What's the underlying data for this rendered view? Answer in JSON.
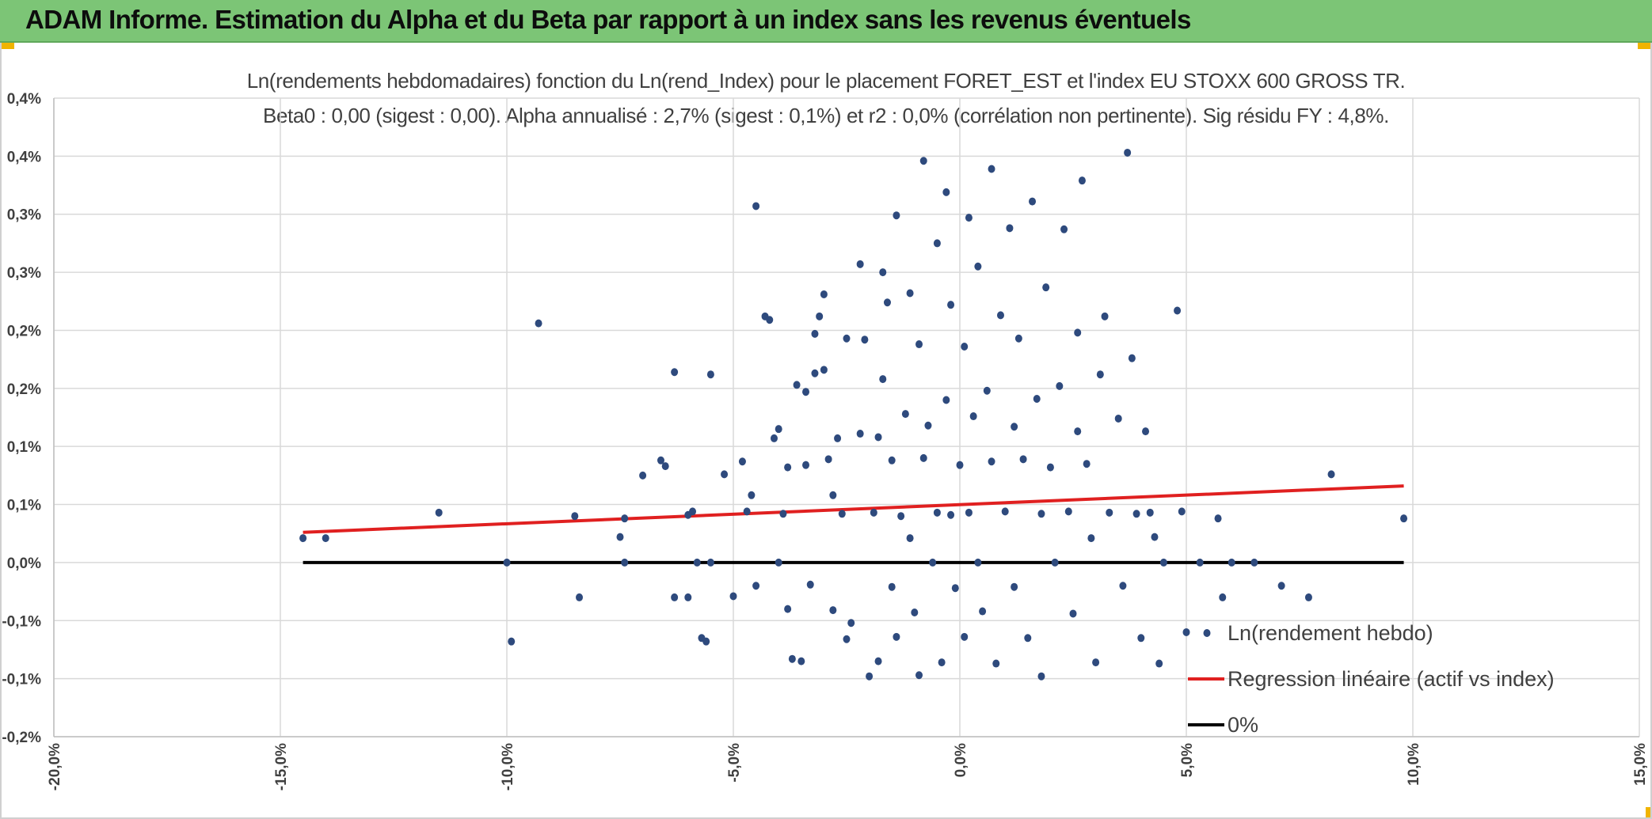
{
  "header": {
    "title": "ADAM Informe. Estimation du Alpha et du Beta par rapport à un index sans les revenus éventuels",
    "accent_color": "#7cc576",
    "corner_color": "#f0b400"
  },
  "chart_data": {
    "type": "scatter",
    "title_line1": "Ln(rendements hebdomadaires) fonction du Ln(rend_Index) pour le placement FORET_EST et l'index EU STOXX 600 GROSS TR.",
    "title_line2": "Beta0 : 0,00 (sigest : 0,00). Alpha annualisé : 2,7% (sigest : 0,1%) et r2 : 0,0% (corrélation non pertinente). Sig résidu FY : 4,8%.",
    "xlim": [
      -0.2,
      0.15
    ],
    "ylim": [
      -0.0015,
      0.004
    ],
    "x_ticks": [
      -0.2,
      -0.15,
      -0.1,
      -0.05,
      0.0,
      0.05,
      0.1,
      0.15
    ],
    "x_tick_labels": [
      "-20,0%",
      "-15,0%",
      "-10,0%",
      "-5,0%",
      "0,0%",
      "5,0%",
      "10,0%",
      "15,0%"
    ],
    "y_ticks": [
      -0.0015,
      -0.001,
      -0.0005,
      0.0,
      0.0005,
      0.001,
      0.0015,
      0.002,
      0.0025,
      0.003,
      0.0035,
      0.004
    ],
    "y_tick_labels": [
      "-0,2%",
      "-0,1%",
      "-0,1%",
      "0,0%",
      "0,1%",
      "0,1%",
      "0,2%",
      "0,2%",
      "0,3%",
      "0,3%",
      "0,4%",
      "0,4%"
    ],
    "grid": true,
    "legend_position": "bottom-right",
    "series": [
      {
        "name": "Ln(rendement hebdo)",
        "kind": "scatter",
        "color": "#2e4a7d",
        "points": [
          [
            -0.145,
            0.00021
          ],
          [
            -0.14,
            0.00021
          ],
          [
            -0.115,
            0.00043
          ],
          [
            -0.1,
            0.0
          ],
          [
            -0.099,
            -0.00068
          ],
          [
            -0.093,
            0.00206
          ],
          [
            -0.085,
            0.0004
          ],
          [
            -0.084,
            -0.0003
          ],
          [
            -0.075,
            0.00022
          ],
          [
            -0.074,
            0.00038
          ],
          [
            -0.074,
            0.0
          ],
          [
            -0.07,
            0.00075
          ],
          [
            -0.066,
            0.00088
          ],
          [
            -0.065,
            0.00083
          ],
          [
            -0.063,
            0.00164
          ],
          [
            -0.063,
            -0.0003
          ],
          [
            -0.06,
            0.00041
          ],
          [
            -0.06,
            -0.0003
          ],
          [
            -0.059,
            0.00044
          ],
          [
            -0.058,
            0.0
          ],
          [
            -0.057,
            -0.00065
          ],
          [
            -0.056,
            -0.00068
          ],
          [
            -0.055,
            0.00162
          ],
          [
            -0.055,
            0.0
          ],
          [
            -0.052,
            0.00076
          ],
          [
            -0.05,
            -0.00029
          ],
          [
            -0.048,
            0.00087
          ],
          [
            -0.047,
            0.00044
          ],
          [
            -0.046,
            0.00058
          ],
          [
            -0.045,
            0.00307
          ],
          [
            -0.045,
            -0.0002
          ],
          [
            -0.043,
            0.00212
          ],
          [
            -0.042,
            0.00209
          ],
          [
            -0.041,
            0.00107
          ],
          [
            -0.04,
            0.00115
          ],
          [
            -0.04,
            0.0
          ],
          [
            -0.039,
            0.00042
          ],
          [
            -0.038,
            0.00082
          ],
          [
            -0.038,
            -0.0004
          ],
          [
            -0.037,
            -0.00083
          ],
          [
            -0.036,
            0.00153
          ],
          [
            -0.035,
            -0.00085
          ],
          [
            -0.034,
            0.00147
          ],
          [
            -0.034,
            0.00084
          ],
          [
            -0.033,
            -0.00019
          ],
          [
            -0.032,
            0.00197
          ],
          [
            -0.032,
            0.00163
          ],
          [
            -0.031,
            0.00212
          ],
          [
            -0.03,
            0.00231
          ],
          [
            -0.03,
            0.00166
          ],
          [
            -0.029,
            0.00089
          ],
          [
            -0.028,
            0.00058
          ],
          [
            -0.028,
            -0.00041
          ],
          [
            -0.027,
            0.00107
          ],
          [
            -0.026,
            0.00042
          ],
          [
            -0.025,
            0.00193
          ],
          [
            -0.025,
            -0.00066
          ],
          [
            -0.024,
            -0.00052
          ],
          [
            -0.022,
            0.00257
          ],
          [
            -0.022,
            0.00111
          ],
          [
            -0.021,
            0.00192
          ],
          [
            -0.02,
            -0.00098
          ],
          [
            -0.019,
            0.00043
          ],
          [
            -0.018,
            0.00108
          ],
          [
            -0.018,
            -0.00085
          ],
          [
            -0.017,
            0.0025
          ],
          [
            -0.017,
            0.00158
          ],
          [
            -0.016,
            0.00224
          ],
          [
            -0.015,
            0.00088
          ],
          [
            -0.015,
            -0.00021
          ],
          [
            -0.014,
            0.00299
          ],
          [
            -0.014,
            -0.00064
          ],
          [
            -0.013,
            0.0004
          ],
          [
            -0.012,
            0.00128
          ],
          [
            -0.011,
            0.00232
          ],
          [
            -0.011,
            0.00021
          ],
          [
            -0.01,
            -0.00043
          ],
          [
            -0.009,
            0.00188
          ],
          [
            -0.009,
            -0.00097
          ],
          [
            -0.008,
            0.00346
          ],
          [
            -0.008,
            0.0009
          ],
          [
            -0.007,
            0.00118
          ],
          [
            -0.006,
            0.0
          ],
          [
            -0.005,
            0.00275
          ],
          [
            -0.005,
            0.00043
          ],
          [
            -0.004,
            -0.00086
          ],
          [
            -0.003,
            0.00319
          ],
          [
            -0.003,
            0.0014
          ],
          [
            -0.002,
            0.00222
          ],
          [
            -0.002,
            0.00041
          ],
          [
            -0.001,
            -0.00022
          ],
          [
            0.0,
            0.00084
          ],
          [
            0.001,
            0.00186
          ],
          [
            0.001,
            -0.00064
          ],
          [
            0.002,
            0.00297
          ],
          [
            0.002,
            0.00043
          ],
          [
            0.003,
            0.00126
          ],
          [
            0.004,
            0.00255
          ],
          [
            0.004,
            0.0
          ],
          [
            0.005,
            -0.00042
          ],
          [
            0.006,
            0.00148
          ],
          [
            0.007,
            0.00339
          ],
          [
            0.007,
            0.00087
          ],
          [
            0.008,
            -0.00087
          ],
          [
            0.009,
            0.00213
          ],
          [
            0.01,
            0.00044
          ],
          [
            0.011,
            0.00288
          ],
          [
            0.012,
            0.00117
          ],
          [
            0.012,
            -0.00021
          ],
          [
            0.013,
            0.00193
          ],
          [
            0.014,
            0.00089
          ],
          [
            0.015,
            -0.00065
          ],
          [
            0.016,
            0.00311
          ],
          [
            0.017,
            0.00141
          ],
          [
            0.018,
            0.00042
          ],
          [
            0.018,
            -0.00098
          ],
          [
            0.019,
            0.00237
          ],
          [
            0.02,
            0.00082
          ],
          [
            0.021,
            0.0
          ],
          [
            0.022,
            0.00152
          ],
          [
            0.023,
            0.00287
          ],
          [
            0.024,
            0.00044
          ],
          [
            0.025,
            -0.00044
          ],
          [
            0.026,
            0.00198
          ],
          [
            0.026,
            0.00113
          ],
          [
            0.027,
            0.00329
          ],
          [
            0.028,
            0.00085
          ],
          [
            0.029,
            0.00021
          ],
          [
            0.03,
            -0.00086
          ],
          [
            0.031,
            0.00162
          ],
          [
            0.032,
            0.00212
          ],
          [
            0.033,
            0.00043
          ],
          [
            0.035,
            0.00124
          ],
          [
            0.036,
            -0.0002
          ],
          [
            0.037,
            0.00353
          ],
          [
            0.038,
            0.00176
          ],
          [
            0.039,
            0.00042
          ],
          [
            0.04,
            -0.00065
          ],
          [
            0.041,
            0.00113
          ],
          [
            0.042,
            0.00043
          ],
          [
            0.043,
            0.00022
          ],
          [
            0.044,
            -0.00087
          ],
          [
            0.045,
            0.0
          ],
          [
            0.048,
            0.00217
          ],
          [
            0.049,
            0.00044
          ],
          [
            0.05,
            -0.0006
          ],
          [
            0.053,
            0.0
          ],
          [
            0.057,
            0.00038
          ],
          [
            0.058,
            -0.0003
          ],
          [
            0.06,
            0.0
          ],
          [
            0.065,
            0.0
          ],
          [
            0.071,
            -0.0002
          ],
          [
            0.077,
            -0.0003
          ],
          [
            0.082,
            0.00076
          ],
          [
            0.098,
            0.00038
          ]
        ]
      },
      {
        "name": "Regression linéaire (actif vs index)",
        "kind": "line",
        "color": "#e02020",
        "points": [
          [
            -0.145,
            0.00026
          ],
          [
            0.098,
            0.00066
          ]
        ]
      },
      {
        "name": "0%",
        "kind": "line",
        "color": "#000000",
        "points": [
          [
            -0.145,
            0.0
          ],
          [
            0.098,
            0.0
          ]
        ]
      }
    ]
  }
}
